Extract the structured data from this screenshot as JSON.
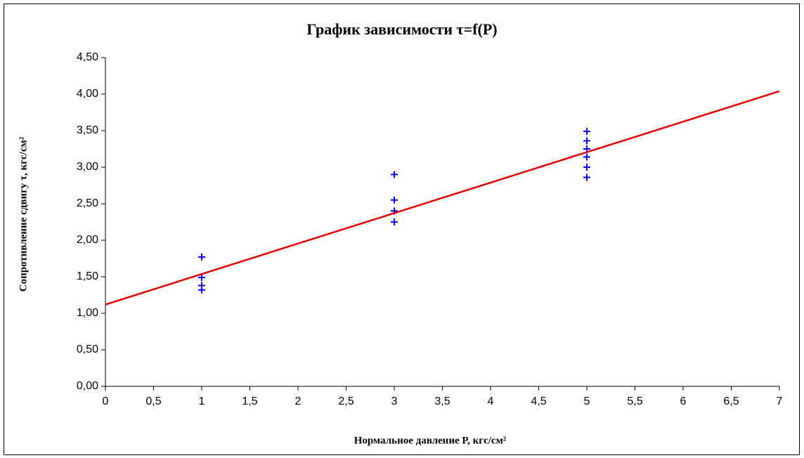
{
  "chart_data": {
    "type": "scatter",
    "title": "График зависимости τ=f(P)",
    "x_label": "Нормальное давление P, кгс/см²",
    "y_label": "Сопротивление сдвигу τ, кгс/см²",
    "xlim": [
      0,
      7
    ],
    "ylim": [
      0,
      4.5
    ],
    "xticks": [
      0,
      {
        "value": 0.5,
        "label": "0,5"
      },
      1,
      {
        "value": 1.5,
        "label": "1,5"
      },
      2,
      {
        "value": 2.5,
        "label": "2,5"
      },
      3,
      {
        "value": 3.5,
        "label": "3,5"
      },
      4,
      {
        "value": 4.5,
        "label": "4,5"
      },
      5,
      {
        "value": 5.5,
        "label": "5,5"
      },
      6,
      {
        "value": 6.5,
        "label": "6,5"
      },
      7
    ],
    "yticks": [
      {
        "value": 0,
        "label": "0,00"
      },
      {
        "value": 0.5,
        "label": "0,50"
      },
      {
        "value": 1,
        "label": "1,00"
      },
      {
        "value": 1.5,
        "label": "1,50"
      },
      {
        "value": 2,
        "label": "2,00"
      },
      {
        "value": 2.5,
        "label": "2,50"
      },
      {
        "value": 3,
        "label": "3,00"
      },
      {
        "value": 3.5,
        "label": "3,50"
      },
      {
        "value": 4,
        "label": "4,00"
      },
      {
        "value": 4.5,
        "label": "4,50"
      }
    ],
    "grid": false,
    "series": [
      {
        "type": "scatter",
        "marker": "plus",
        "color": "#0000ff",
        "x": [
          1,
          1,
          1,
          1,
          3,
          3,
          3,
          3,
          5,
          5,
          5,
          5,
          5,
          5
        ],
        "values": [
          1.77,
          1.49,
          1.38,
          1.32,
          2.9,
          2.55,
          2.4,
          2.25,
          3.49,
          3.36,
          3.25,
          3.14,
          3.0,
          2.86
        ]
      },
      {
        "type": "line",
        "color": "#e00000",
        "x": [
          0,
          7
        ],
        "values": [
          1.12,
          4.04
        ]
      }
    ]
  }
}
